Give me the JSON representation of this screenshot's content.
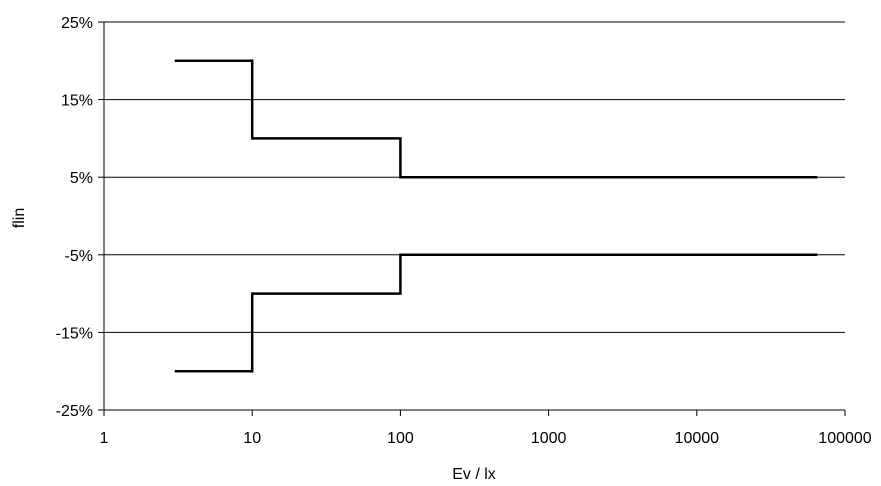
{
  "chart_data": {
    "type": "line",
    "title": "",
    "xlabel": "Ev / lx",
    "ylabel": "flin",
    "x_scale": "log",
    "xlim": [
      1,
      100000
    ],
    "ylim": [
      -0.25,
      0.25
    ],
    "x_ticks": [
      {
        "value": 1,
        "label": "1"
      },
      {
        "value": 10,
        "label": "10"
      },
      {
        "value": 100,
        "label": "100"
      },
      {
        "value": 1000,
        "label": "1000"
      },
      {
        "value": 10000,
        "label": "10000"
      },
      {
        "value": 100000,
        "label": "100000"
      }
    ],
    "y_ticks": [
      {
        "value": 0.25,
        "label": "25%"
      },
      {
        "value": 0.15,
        "label": "15%"
      },
      {
        "value": 0.05,
        "label": "5%"
      },
      {
        "value": -0.05,
        "label": "-5%"
      },
      {
        "value": -0.15,
        "label": "-15%"
      },
      {
        "value": -0.25,
        "label": "-25%"
      }
    ],
    "grid": "horizontal",
    "legend": "none",
    "series": [
      {
        "color": "#000000",
        "points": [
          [
            3,
            0.2
          ],
          [
            10,
            0.2
          ],
          [
            10,
            0.1
          ],
          [
            100,
            0.1
          ],
          [
            100,
            0.05
          ],
          [
            65000,
            0.05
          ]
        ]
      },
      {
        "color": "#000000",
        "points": [
          [
            3,
            -0.2
          ],
          [
            10,
            -0.2
          ],
          [
            10,
            -0.1
          ],
          [
            100,
            -0.1
          ],
          [
            100,
            -0.05
          ],
          [
            65000,
            -0.05
          ]
        ]
      }
    ]
  }
}
